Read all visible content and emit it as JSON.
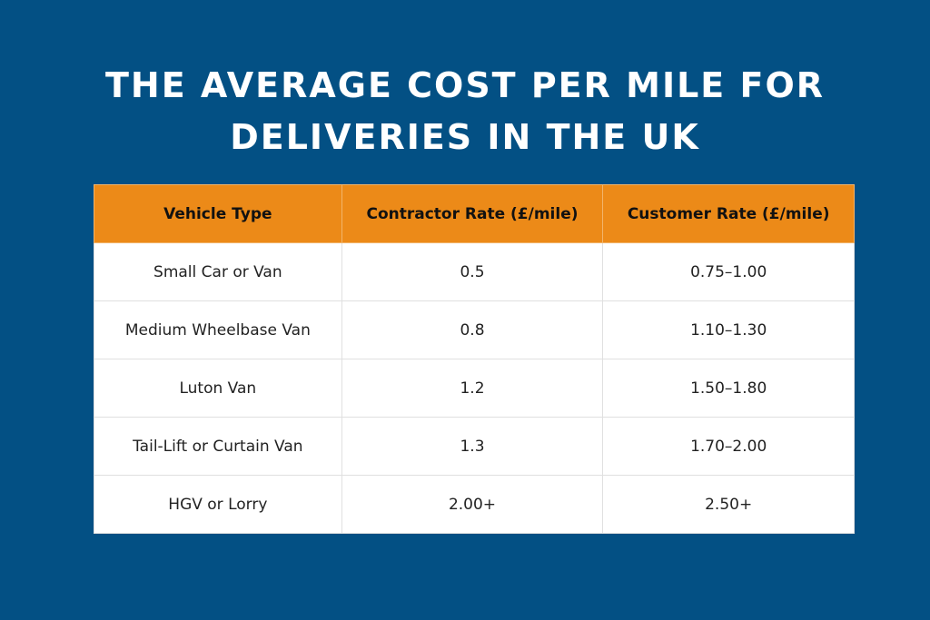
{
  "title_lines": [
    "THE AVERAGE COST PER MILE FOR",
    "DELIVERIES IN THE UK"
  ],
  "colors": {
    "background": "#035084",
    "header": "#ec8a18",
    "row": "#ffffff"
  },
  "chart_data": {
    "type": "table",
    "title": "THE AVERAGE COST PER MILE FOR DELIVERIES IN THE UK",
    "columns": [
      "Vehicle Type",
      "Contractor Rate (£/mile)",
      "Customer Rate (£/mile)"
    ],
    "rows": [
      [
        "Small Car or Van",
        "0.5",
        "0.75–1.00"
      ],
      [
        "Medium Wheelbase Van",
        "0.8",
        "1.10–1.30"
      ],
      [
        "Luton Van",
        "1.2",
        "1.50–1.80"
      ],
      [
        "Tail-Lift or Curtain Van",
        "1.3",
        "1.70–2.00"
      ],
      [
        "HGV or Lorry",
        "2.00+",
        "2.50+"
      ]
    ]
  }
}
